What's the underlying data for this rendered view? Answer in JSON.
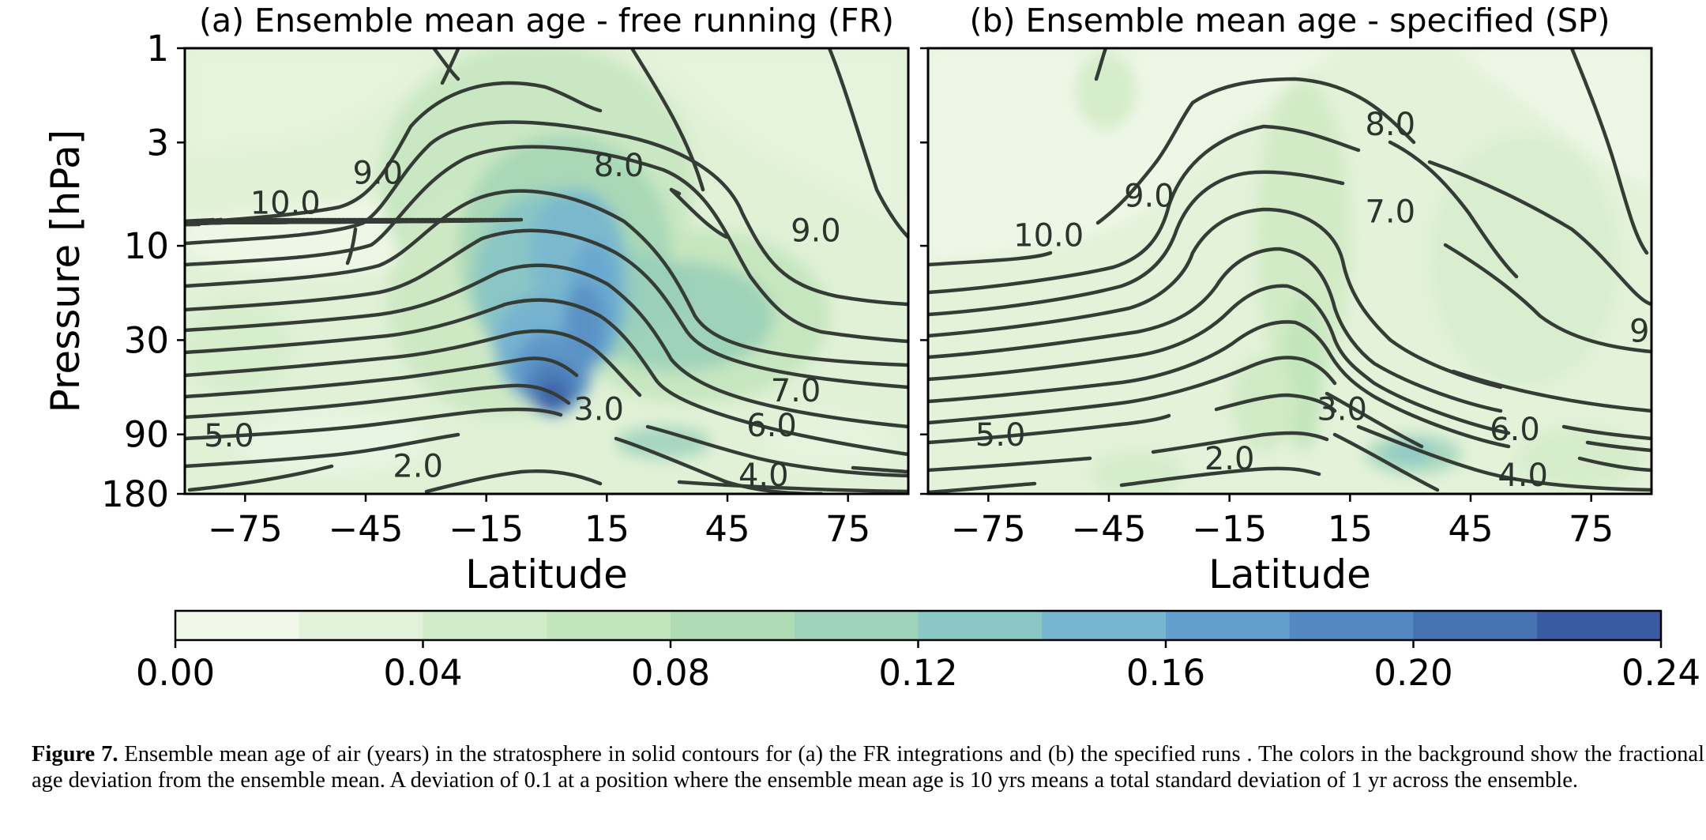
{
  "chart_data": {
    "type": "contour",
    "panels": [
      {
        "id": "a",
        "title": "(a) Ensemble mean age - free running (FR)",
        "xlabel": "Latitude",
        "ylabel": "Pressure [hPa]",
        "xlim": [
          -90,
          90
        ],
        "ylim": [
          180,
          1
        ],
        "yscale": "log",
        "xticks": [
          -75,
          -45,
          -15,
          15,
          45,
          75
        ],
        "xtick_labels": [
          "−75",
          "−45",
          "−15",
          "15",
          "45",
          "75"
        ],
        "yticks": [
          1,
          3,
          10,
          30,
          90,
          180
        ],
        "ytick_labels": [
          "1",
          "3",
          "10",
          "30",
          "90",
          "180"
        ],
        "contour_labels": [
          {
            "text": "10.0",
            "lat": -65,
            "p": 6.5
          },
          {
            "text": "9.0",
            "lat": -42,
            "p": 4.6
          },
          {
            "text": "8.0",
            "lat": 18,
            "p": 4.2
          },
          {
            "text": "9.0",
            "lat": 67,
            "p": 9.0
          },
          {
            "text": "7.0",
            "lat": 62,
            "p": 58
          },
          {
            "text": "6.0",
            "lat": 56,
            "p": 87
          },
          {
            "text": "5.0",
            "lat": -79,
            "p": 98
          },
          {
            "text": "3.0",
            "lat": 13,
            "p": 72
          },
          {
            "text": "2.0",
            "lat": -32,
            "p": 140
          },
          {
            "text": "4.0",
            "lat": 54,
            "p": 155
          }
        ]
      },
      {
        "id": "b",
        "title": "(b) Ensemble mean age - specified (SP)",
        "xlabel": "Latitude",
        "ylabel": "",
        "xlim": [
          -90,
          90
        ],
        "ylim": [
          180,
          1
        ],
        "yscale": "log",
        "xticks": [
          -75,
          -45,
          -15,
          15,
          45,
          75
        ],
        "xtick_labels": [
          "−75",
          "−45",
          "−15",
          "15",
          "45",
          "75"
        ],
        "yticks": [
          1,
          3,
          10,
          30,
          90,
          180
        ],
        "contour_labels": [
          {
            "text": "8.0",
            "lat": 25,
            "p": 2.6
          },
          {
            "text": "9.0",
            "lat": -35,
            "p": 6.0
          },
          {
            "text": "10.0",
            "lat": -60,
            "p": 9.5
          },
          {
            "text": "7.0",
            "lat": 25,
            "p": 7.2
          },
          {
            "text": "9",
            "lat": 87,
            "p": 29
          },
          {
            "text": "6.0",
            "lat": 56,
            "p": 91
          },
          {
            "text": "5.0",
            "lat": -72,
            "p": 97
          },
          {
            "text": "3.0",
            "lat": 13,
            "p": 72
          },
          {
            "text": "2.0",
            "lat": -15,
            "p": 128
          },
          {
            "text": "4.0",
            "lat": 58,
            "p": 155
          }
        ]
      }
    ],
    "colorbar": {
      "label": "fractional age deviation",
      "range": [
        0.0,
        0.24
      ],
      "levels": [
        0.0,
        0.02,
        0.04,
        0.06,
        0.08,
        0.1,
        0.12,
        0.14,
        0.16,
        0.18,
        0.2,
        0.22,
        0.24
      ],
      "tick_values": [
        0.0,
        0.04,
        0.08,
        0.12,
        0.16,
        0.2,
        0.24
      ],
      "tick_labels": [
        "0.00",
        "0.04",
        "0.08",
        "0.12",
        "0.16",
        "0.20",
        "0.24"
      ],
      "colors": [
        "#f1f8ea",
        "#e2f2da",
        "#d2ecca",
        "#c2e5bc",
        "#b0dcb5",
        "#9ed3ba",
        "#8bc7c4",
        "#76b6d0",
        "#629fcc",
        "#5389c0",
        "#4672b2",
        "#3a5aa1"
      ]
    },
    "contour_color": "#353c36"
  },
  "caption": {
    "label": "Figure 7.",
    "text": " Ensemble mean age of air (years) in the stratosphere in solid contours for (a) the FR integrations and (b) the specified runs . The colors in the background show the fractional age deviation from the ensemble mean. A deviation of 0.1 at a position where the ensemble mean age is 10 yrs means a total standard deviation of 1 yr across the ensemble."
  }
}
